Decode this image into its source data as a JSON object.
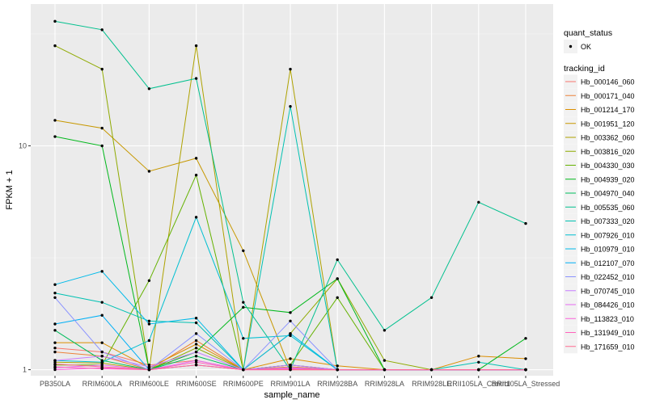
{
  "chart_data": {
    "type": "line",
    "xlabel": "sample_name",
    "ylabel": "FPKM + 1",
    "y_scale": "log10",
    "ylim": [
      0.94,
      43
    ],
    "y_ticks": [
      {
        "value": 1,
        "label": "1"
      },
      {
        "value": 10,
        "label": "10"
      }
    ],
    "grid": true,
    "legend_position": "right",
    "categories": [
      "PB350LA",
      "RRIM600LA",
      "RRIM600LE",
      "RRIM600SE",
      "RRIM600PE",
      "RRIM901LA",
      "RRIM928BA",
      "RRIM928LA",
      "RRIM928LE",
      "RRII105LA_Control",
      "RRII105LA_Stressed"
    ],
    "point_legend": {
      "title": "quant_status",
      "entries": [
        "OK"
      ]
    },
    "series_legend_title": "tracking_id",
    "series": [
      {
        "name": "Hb_000146_060",
        "color": "#F8766D",
        "values": [
          1.25,
          1.2,
          1.05,
          1.1,
          1.0,
          1.05,
          1.0,
          1.0,
          1.0,
          1.0,
          1.0
        ]
      },
      {
        "name": "Hb_000171_040",
        "color": "#EC8239",
        "values": [
          1.2,
          1.15,
          1.0,
          1.35,
          1.0,
          1.03,
          1.0,
          1.0,
          1.0,
          1.0,
          1.0
        ]
      },
      {
        "name": "Hb_001214_170",
        "color": "#DB8E00",
        "values": [
          1.32,
          1.32,
          1.02,
          1.3,
          1.0,
          1.12,
          1.04,
          1.0,
          1.0,
          1.15,
          1.12
        ]
      },
      {
        "name": "Hb_001951_120",
        "color": "#C79800",
        "values": [
          13.0,
          12.0,
          7.7,
          8.8,
          3.4,
          1.0,
          1.0,
          1.0,
          1.0,
          1.0,
          1.0
        ]
      },
      {
        "name": "Hb_003362_060",
        "color": "#AEA200",
        "values": [
          1.08,
          1.07,
          1.0,
          28.0,
          1.0,
          22.0,
          1.0,
          1.0,
          1.0,
          1.0,
          1.0
        ]
      },
      {
        "name": "Hb_003816_020",
        "color": "#8FAA00",
        "values": [
          28.0,
          22.0,
          1.0,
          1.25,
          1.0,
          1.45,
          2.55,
          1.1,
          1.0,
          1.0,
          1.0
        ]
      },
      {
        "name": "Hb_004330_030",
        "color": "#64B200",
        "values": [
          1.05,
          1.05,
          2.5,
          7.4,
          1.0,
          1.05,
          2.1,
          1.0,
          1.0,
          1.0,
          1.0
        ]
      },
      {
        "name": "Hb_004939_020",
        "color": "#00B81B",
        "values": [
          11.0,
          10.0,
          1.0,
          1.2,
          1.9,
          1.8,
          2.55,
          1.0,
          1.0,
          1.0,
          1.38
        ]
      },
      {
        "name": "Hb_004970_040",
        "color": "#00BD5C",
        "values": [
          1.5,
          1.1,
          1.0,
          1.15,
          1.0,
          1.05,
          1.0,
          1.0,
          1.0,
          1.0,
          1.0
        ]
      },
      {
        "name": "Hb_005535_060",
        "color": "#00C08E",
        "values": [
          36.0,
          33.0,
          18.0,
          20.0,
          2.0,
          1.0,
          3.1,
          1.5,
          2.1,
          5.6,
          4.5
        ]
      },
      {
        "name": "Hb_007333_020",
        "color": "#00C1B2",
        "values": [
          2.2,
          2.0,
          1.65,
          1.62,
          1.0,
          15.0,
          1.0,
          1.0,
          1.0,
          1.08,
          1.0
        ]
      },
      {
        "name": "Hb_007926_010",
        "color": "#00BFD1",
        "values": [
          1.1,
          1.08,
          1.35,
          4.8,
          1.38,
          1.42,
          1.0,
          1.0,
          1.0,
          1.0,
          1.0
        ]
      },
      {
        "name": "Hb_010979_010",
        "color": "#00BAE9",
        "values": [
          2.4,
          2.75,
          1.6,
          1.7,
          1.0,
          1.45,
          1.0,
          1.0,
          1.0,
          1.0,
          1.0
        ]
      },
      {
        "name": "Hb_012107_070",
        "color": "#00B0F6",
        "values": [
          1.6,
          1.75,
          1.0,
          1.05,
          1.0,
          1.02,
          1.0,
          1.0,
          1.0,
          1.0,
          1.0
        ]
      },
      {
        "name": "Hb_022452_010",
        "color": "#8B93FF",
        "values": [
          2.1,
          1.2,
          1.0,
          1.45,
          1.0,
          1.65,
          1.0,
          1.0,
          1.0,
          1.0,
          1.0
        ]
      },
      {
        "name": "Hb_070745_010",
        "color": "#C77CFF",
        "values": [
          1.1,
          1.15,
          1.03,
          1.2,
          1.0,
          1.05,
          1.0,
          1.0,
          1.0,
          1.0,
          1.0
        ]
      },
      {
        "name": "Hb_084426_010",
        "color": "#E76BF3",
        "values": [
          1.02,
          1.05,
          1.0,
          1.1,
          1.0,
          1.02,
          1.0,
          1.0,
          1.0,
          1.0,
          1.0
        ]
      },
      {
        "name": "Hb_113823_010",
        "color": "#FA62DB",
        "values": [
          1.0,
          1.02,
          1.0,
          1.05,
          1.0,
          1.0,
          1.0,
          1.0,
          1.0,
          1.0,
          1.0
        ]
      },
      {
        "name": "Hb_131949_010",
        "color": "#FF62BC",
        "values": [
          1.03,
          1.01,
          1.0,
          1.08,
          1.0,
          1.01,
          1.0,
          1.0,
          1.0,
          1.0,
          1.0
        ]
      },
      {
        "name": "Hb_171659_010",
        "color": "#FF6C91",
        "values": [
          1.06,
          1.03,
          1.0,
          1.05,
          1.0,
          1.0,
          1.0,
          1.0,
          1.0,
          1.0,
          1.0
        ]
      }
    ]
  }
}
